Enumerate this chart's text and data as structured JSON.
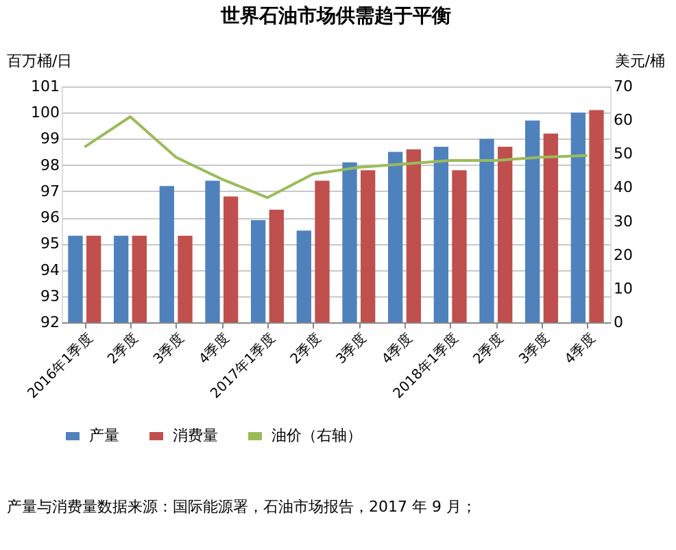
{
  "chart_data": {
    "type": "bar",
    "title": "世界石油市场供需趋于平衡",
    "ylabel": "百万桶/日",
    "y2label": "美元/桶",
    "categories": [
      "2016年1季度",
      "2季度",
      "3季度",
      "4季度",
      "2017年1季度",
      "2季度",
      "3季度",
      "4季度",
      "2018年1季度",
      "2季度",
      "3季度",
      "4季度"
    ],
    "series": [
      {
        "name": "产量",
        "color": "#4f81bd",
        "values": [
          95.3,
          95.3,
          97.2,
          97.4,
          95.9,
          95.5,
          98.1,
          98.5,
          98.7,
          99.0,
          99.7,
          100.0
        ]
      },
      {
        "name": "消费量",
        "color": "#c0504d",
        "values": [
          95.3,
          95.3,
          95.3,
          96.8,
          96.3,
          97.4,
          97.8,
          98.6,
          97.8,
          98.7,
          99.2,
          100.1
        ]
      },
      {
        "name": "油价（右轴）",
        "type": "line",
        "axis": "y2",
        "color": "#9bbb59",
        "values": [
          52,
          61,
          49,
          42.5,
          37,
          44,
          46,
          47,
          48,
          48,
          49,
          49.5
        ]
      }
    ],
    "ylim": [
      92,
      101
    ],
    "yticks": [
      92,
      93,
      94,
      95,
      96,
      97,
      98,
      99,
      100,
      101
    ],
    "y2lim": [
      0,
      70
    ],
    "y2ticks": [
      0,
      10,
      20,
      30,
      40,
      50,
      60,
      70
    ],
    "grid": "y",
    "legend": "bottom",
    "marker": "none",
    "annotations": [
      "产量与消费量数据来源：国际能源署，石油市场报告，2017 年 9 月；"
    ]
  }
}
